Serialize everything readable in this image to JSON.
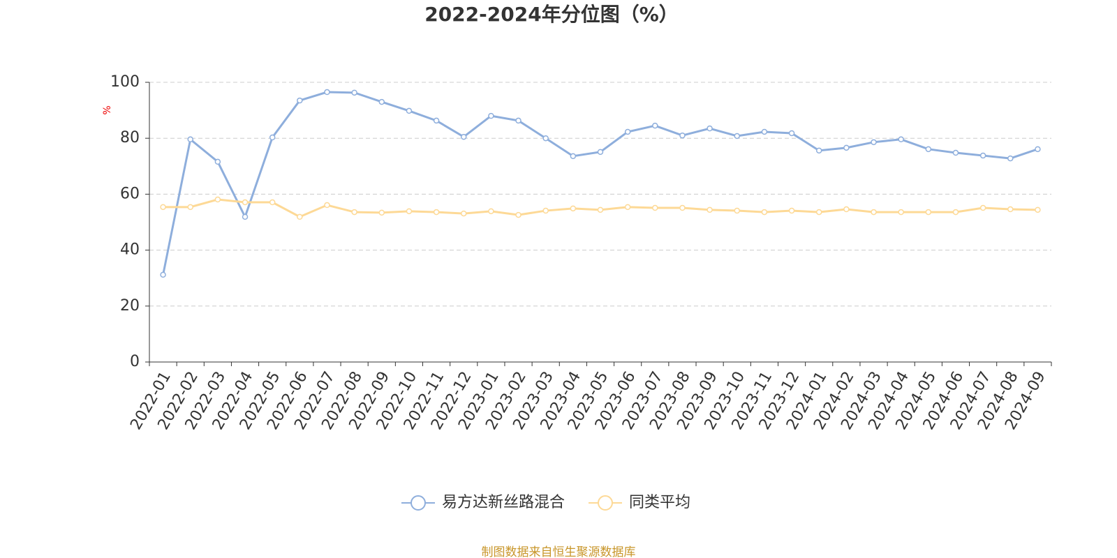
{
  "chart_data": {
    "type": "line",
    "title": "2022-2024年分位图（%）",
    "y_label": "%",
    "categories": [
      "2022-01",
      "2022-02",
      "2022-03",
      "2022-04",
      "2022-05",
      "2022-06",
      "2022-07",
      "2022-08",
      "2022-09",
      "2022-10",
      "2022-11",
      "2022-12",
      "2023-01",
      "2023-02",
      "2023-03",
      "2023-04",
      "2023-05",
      "2023-06",
      "2023-07",
      "2023-08",
      "2023-09",
      "2023-10",
      "2023-11",
      "2023-12",
      "2024-01",
      "2024-02",
      "2024-03",
      "2024-04",
      "2024-05",
      "2024-06",
      "2024-07",
      "2024-08",
      "2024-09"
    ],
    "series": [
      {
        "name": "易方达新丝路混合",
        "color": "#8eaedc",
        "values": [
          31.2,
          79.6,
          71.6,
          51.9,
          80.3,
          93.5,
          96.5,
          96.3,
          93.0,
          89.8,
          86.3,
          80.5,
          88.0,
          86.3,
          80.0,
          73.6,
          75.1,
          82.3,
          84.5,
          81.0,
          83.5,
          80.8,
          82.3,
          81.8,
          75.6,
          76.6,
          78.6,
          79.6,
          76.1,
          74.8,
          73.8,
          72.8,
          76.1
        ]
      },
      {
        "name": "同类平均",
        "color": "#fdd996",
        "values": [
          55.4,
          55.4,
          58.1,
          57.1,
          57.1,
          51.9,
          56.1,
          53.6,
          53.4,
          53.9,
          53.6,
          53.1,
          53.9,
          52.6,
          54.1,
          54.9,
          54.4,
          55.4,
          55.1,
          55.1,
          54.4,
          54.1,
          53.6,
          54.1,
          53.6,
          54.6,
          53.6,
          53.6,
          53.6,
          53.6,
          55.1,
          54.6,
          54.4
        ]
      }
    ],
    "ylim": [
      0,
      100
    ],
    "yticks": [
      0,
      20,
      40,
      60,
      80,
      100
    ],
    "grid": true,
    "legend": "bottom",
    "source": "制图数据来自恒生聚源数据库"
  }
}
